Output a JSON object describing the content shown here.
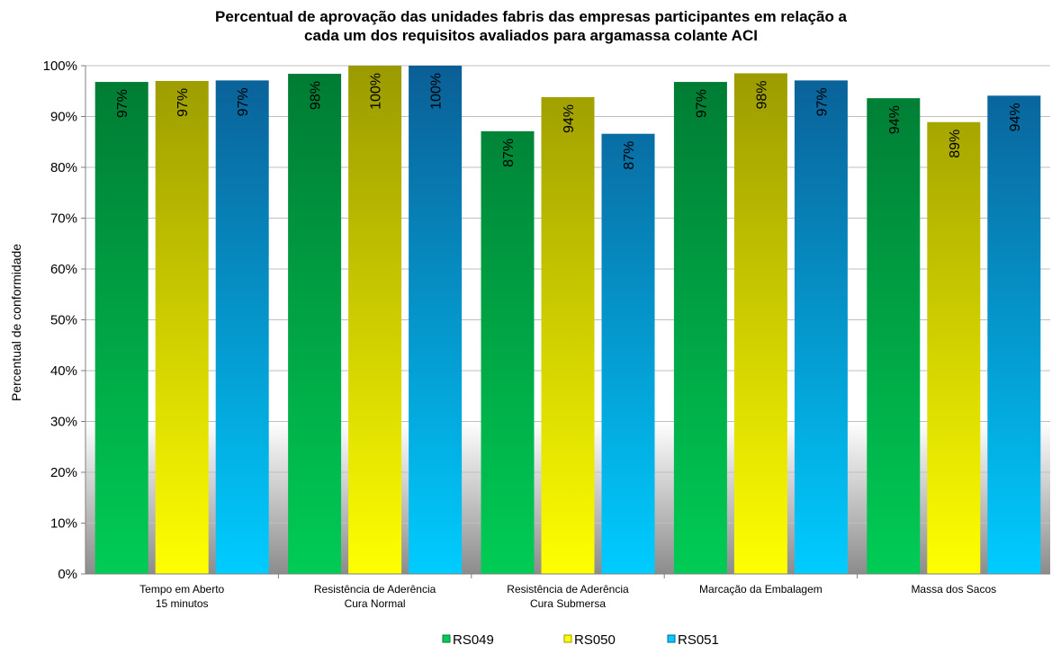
{
  "chart_data": {
    "type": "bar",
    "title_lines": [
      "Percentual de aprovação das unidades fabris das empresas participantes em relação a",
      "cada um dos requisitos avaliados para argamassa colante ACI"
    ],
    "ylabel": "Percentual de conformidade",
    "xlabel": "",
    "ylim": [
      0,
      100
    ],
    "yticks": [
      "0%",
      "10%",
      "20%",
      "30%",
      "40%",
      "50%",
      "60%",
      "70%",
      "80%",
      "90%",
      "100%"
    ],
    "categories": [
      [
        "Tempo em Aberto",
        "15 minutos"
      ],
      [
        "Resistência de Aderência",
        "Cura Normal"
      ],
      [
        "Resistência de Aderência",
        "Cura Submersa"
      ],
      [
        "Marcação da Embalagem"
      ],
      [
        "Massa dos Sacos"
      ]
    ],
    "series": [
      {
        "name": "RS049",
        "values": [
          96.8,
          98.4,
          87.1,
          96.8,
          93.6
        ],
        "labels": [
          "97%",
          "98%",
          "87%",
          "97%",
          "94%"
        ],
        "color_top": "#007a33",
        "color_bottom": "#00cc55"
      },
      {
        "name": "RS050",
        "values": [
          97.0,
          100,
          93.8,
          98.5,
          88.9
        ],
        "labels": [
          "97%",
          "100%",
          "94%",
          "98%",
          "89%"
        ],
        "color_top": "#9a9a00",
        "color_bottom": "#ffff00"
      },
      {
        "name": "RS051",
        "values": [
          97.1,
          100,
          86.6,
          97.1,
          94.1
        ],
        "labels": [
          "97%",
          "100%",
          "87%",
          "97%",
          "94%"
        ],
        "color_top": "#0a5f96",
        "color_bottom": "#00ccff"
      }
    ],
    "grid": "horizontal",
    "legend_position": "bottom",
    "background": "white with gray gradient band below 30%"
  }
}
